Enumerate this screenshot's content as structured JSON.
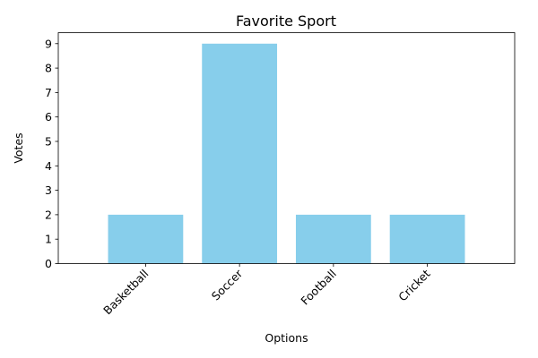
{
  "chart_data": {
    "type": "bar",
    "title": "Favorite Sport",
    "xlabel": "Options",
    "ylabel": "Votes",
    "categories": [
      "Basketball",
      "Soccer",
      "Football",
      "Cricket"
    ],
    "values": [
      2,
      9,
      2,
      2
    ],
    "ylim": [
      0,
      9.45
    ],
    "yticks": [
      "0",
      "1",
      "2",
      "3",
      "4",
      "5",
      "6",
      "7",
      "8",
      "9"
    ],
    "bar_color": "#87CEEB",
    "grid": false,
    "legend": "none"
  }
}
